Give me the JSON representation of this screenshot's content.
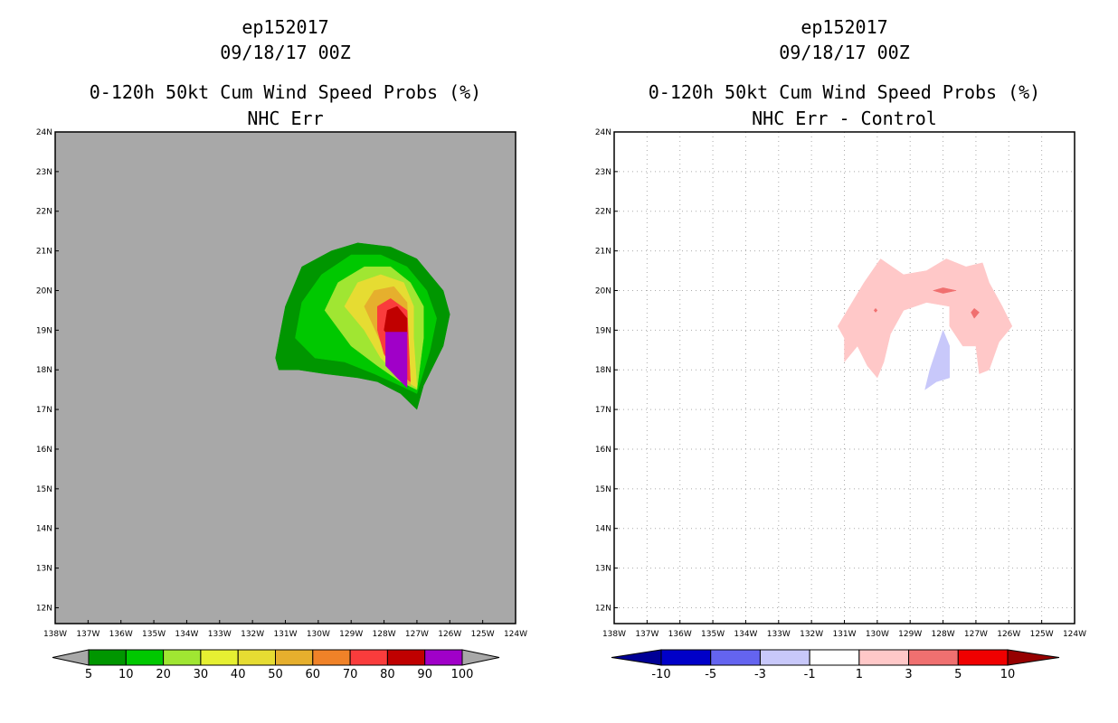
{
  "panels": [
    {
      "storm_id": "ep152017",
      "datetime": "09/18/17 00Z",
      "title": "0-120h 50kt Cum Wind Speed Probs (%)",
      "subtitle": "NHC Err",
      "background": "#a8a8a8"
    },
    {
      "storm_id": "ep152017",
      "datetime": "09/18/17 00Z",
      "title": "0-120h 50kt Cum Wind Speed Probs (%)",
      "subtitle": "NHC Err - Control",
      "background": "#ffffff"
    }
  ],
  "chart_data": [
    {
      "type": "contour-map",
      "title": "0-120h 50kt Cum Wind Speed Probs (%)",
      "subtitle": "NHC Err",
      "xlim": [
        -138,
        -124
      ],
      "ylim": [
        11.6,
        24
      ],
      "x_ticks": [
        "138W",
        "137W",
        "136W",
        "135W",
        "134W",
        "133W",
        "132W",
        "131W",
        "130W",
        "129W",
        "128W",
        "127W",
        "126W",
        "125W",
        "124W"
      ],
      "y_ticks": [
        "12N",
        "13N",
        "14N",
        "15N",
        "16N",
        "17N",
        "18N",
        "19N",
        "20N",
        "21N",
        "22N",
        "23N",
        "24N"
      ],
      "grid": false,
      "contours": [
        {
          "level": 5,
          "color": "#009600",
          "points": [
            [
              -131.3,
              18.3
            ],
            [
              -131.0,
              19.6
            ],
            [
              -130.5,
              20.6
            ],
            [
              -129.6,
              21.0
            ],
            [
              -128.8,
              21.2
            ],
            [
              -127.8,
              21.1
            ],
            [
              -127.0,
              20.8
            ],
            [
              -126.2,
              20.0
            ],
            [
              -126.0,
              19.4
            ],
            [
              -126.2,
              18.6
            ],
            [
              -126.8,
              17.6
            ],
            [
              -127.0,
              17.0
            ],
            [
              -127.5,
              17.4
            ],
            [
              -128.2,
              17.7
            ],
            [
              -128.8,
              17.8
            ],
            [
              -129.8,
              17.9
            ],
            [
              -130.6,
              18.0
            ],
            [
              -131.2,
              18.0
            ]
          ]
        },
        {
          "level": 10,
          "color": "#00c800",
          "points": [
            [
              -130.7,
              18.8
            ],
            [
              -130.5,
              19.7
            ],
            [
              -129.9,
              20.4
            ],
            [
              -129.0,
              20.9
            ],
            [
              -128.1,
              20.9
            ],
            [
              -127.3,
              20.6
            ],
            [
              -126.7,
              20.0
            ],
            [
              -126.4,
              19.3
            ],
            [
              -126.6,
              18.5
            ],
            [
              -127.0,
              17.4
            ],
            [
              -127.5,
              17.6
            ],
            [
              -128.3,
              17.9
            ],
            [
              -129.2,
              18.2
            ],
            [
              -130.1,
              18.3
            ]
          ]
        },
        {
          "level": 20,
          "color": "#a0e632",
          "points": [
            [
              -129.8,
              19.5
            ],
            [
              -129.4,
              20.2
            ],
            [
              -128.6,
              20.6
            ],
            [
              -127.8,
              20.6
            ],
            [
              -127.2,
              20.2
            ],
            [
              -126.8,
              19.6
            ],
            [
              -126.8,
              18.8
            ],
            [
              -127.0,
              17.5
            ],
            [
              -127.5,
              17.7
            ],
            [
              -128.2,
              18.1
            ],
            [
              -129.0,
              18.6
            ]
          ]
        },
        {
          "level": 30,
          "color": "#e6dc32",
          "points": [
            [
              -129.2,
              19.6
            ],
            [
              -128.8,
              20.2
            ],
            [
              -128.1,
              20.4
            ],
            [
              -127.4,
              20.2
            ],
            [
              -127.1,
              19.6
            ],
            [
              -127.1,
              18.8
            ],
            [
              -127.0,
              17.55
            ],
            [
              -127.5,
              17.8
            ],
            [
              -128.1,
              18.3
            ],
            [
              -128.6,
              19.0
            ]
          ]
        },
        {
          "level": 40,
          "color": "#e6dc32",
          "points": [
            [
              -128.9,
              19.6
            ],
            [
              -128.5,
              20.1
            ],
            [
              -127.9,
              20.3
            ],
            [
              -127.4,
              20.0
            ],
            [
              -127.2,
              19.5
            ],
            [
              -127.1,
              17.6
            ],
            [
              -127.6,
              17.9
            ],
            [
              -128.1,
              18.6
            ]
          ]
        },
        {
          "level": 50,
          "color": "#e6af2d",
          "points": [
            [
              -128.6,
              19.6
            ],
            [
              -128.3,
              20.0
            ],
            [
              -127.7,
              20.1
            ],
            [
              -127.3,
              19.7
            ],
            [
              -127.2,
              17.6
            ],
            [
              -127.7,
              17.9
            ],
            [
              -128.1,
              18.7
            ]
          ]
        },
        {
          "level": 70,
          "color": "#fa3c3c",
          "points": [
            [
              -128.2,
              19.0
            ],
            [
              -128.2,
              19.6
            ],
            [
              -127.8,
              19.8
            ],
            [
              -127.3,
              19.5
            ],
            [
              -127.2,
              17.7
            ],
            [
              -127.7,
              18.0
            ],
            [
              -128.0,
              18.4
            ]
          ]
        },
        {
          "level": 80,
          "color": "#c00000",
          "points": [
            [
              -128.0,
              19.0
            ],
            [
              -127.9,
              19.5
            ],
            [
              -127.6,
              19.6
            ],
            [
              -127.3,
              19.3
            ],
            [
              -127.3,
              18.9
            ],
            [
              -127.9,
              18.9
            ]
          ]
        },
        {
          "level": 90,
          "color": "#a000c8",
          "points": [
            [
              -127.95,
              18.95
            ],
            [
              -127.3,
              18.95
            ],
            [
              -127.3,
              17.55
            ],
            [
              -127.6,
              17.8
            ],
            [
              -127.95,
              18.1
            ]
          ]
        }
      ],
      "colorbar": {
        "labels": [
          "5",
          "10",
          "20",
          "30",
          "40",
          "50",
          "60",
          "70",
          "80",
          "90",
          "100"
        ],
        "colors": [
          "#009600",
          "#00c800",
          "#a0e632",
          "#e6f032",
          "#e6dc32",
          "#e6af2d",
          "#f08228",
          "#fa3c3c",
          "#c00000",
          "#a000c8"
        ]
      }
    },
    {
      "type": "contour-map",
      "title": "0-120h 50kt Cum Wind Speed Probs (%)",
      "subtitle": "NHC Err - Control",
      "xlim": [
        -138,
        -124
      ],
      "ylim": [
        11.6,
        24
      ],
      "x_ticks": [
        "138W",
        "137W",
        "136W",
        "135W",
        "134W",
        "133W",
        "132W",
        "131W",
        "130W",
        "129W",
        "128W",
        "127W",
        "126W",
        "125W",
        "124W"
      ],
      "y_ticks": [
        "12N",
        "13N",
        "14N",
        "15N",
        "16N",
        "17N",
        "18N",
        "19N",
        "20N",
        "21N",
        "22N",
        "23N",
        "24N"
      ],
      "grid": true,
      "contours": [
        {
          "level": 1,
          "color": "#ffc8c8",
          "points": [
            [
              -131.2,
              19.1
            ],
            [
              -130.4,
              20.2
            ],
            [
              -129.9,
              20.8
            ],
            [
              -129.2,
              20.4
            ],
            [
              -128.5,
              20.5
            ],
            [
              -127.9,
              20.8
            ],
            [
              -127.3,
              20.6
            ],
            [
              -126.8,
              20.7
            ],
            [
              -126.6,
              20.2
            ],
            [
              -126.2,
              19.6
            ],
            [
              -125.9,
              19.1
            ],
            [
              -126.3,
              18.7
            ],
            [
              -126.6,
              18.0
            ],
            [
              -126.9,
              17.9
            ],
            [
              -127.0,
              18.6
            ],
            [
              -127.4,
              18.6
            ],
            [
              -127.8,
              19.1
            ],
            [
              -127.8,
              19.6
            ],
            [
              -128.5,
              19.7
            ],
            [
              -129.2,
              19.5
            ],
            [
              -129.6,
              18.9
            ],
            [
              -129.8,
              18.2
            ],
            [
              -130.0,
              17.8
            ],
            [
              -130.3,
              18.1
            ],
            [
              -130.6,
              18.6
            ],
            [
              -131.0,
              18.2
            ],
            [
              -131.0,
              18.8
            ]
          ]
        },
        {
          "level": 3,
          "color": "#f07070",
          "points": [
            [
              -128.3,
              20.0
            ],
            [
              -128.0,
              20.07
            ],
            [
              -127.6,
              20.0
            ],
            [
              -128.0,
              19.93
            ]
          ]
        },
        {
          "level": 3,
          "color": "#f07070",
          "points": [
            [
              -130.1,
              19.5
            ],
            [
              -130.05,
              19.55
            ],
            [
              -130.0,
              19.5
            ],
            [
              -130.05,
              19.45
            ]
          ]
        },
        {
          "level": 3,
          "color": "#f07070",
          "points": [
            [
              -127.05,
              19.55
            ],
            [
              -126.9,
              19.45
            ],
            [
              -127.05,
              19.3
            ],
            [
              -127.15,
              19.45
            ]
          ]
        },
        {
          "level": -1,
          "color": "#c8c8fa",
          "points": [
            [
              -128.2,
              18.5
            ],
            [
              -128.0,
              19.0
            ],
            [
              -127.8,
              18.6
            ],
            [
              -127.8,
              17.8
            ],
            [
              -128.2,
              17.7
            ],
            [
              -128.55,
              17.5
            ],
            [
              -128.4,
              18.0
            ]
          ]
        }
      ],
      "colorbar": {
        "labels": [
          "-10",
          "-5",
          "-3",
          "-1",
          "1",
          "3",
          "5",
          "10"
        ],
        "colors": [
          "#0000c8",
          "#6464f0",
          "#c8c8fa",
          "#ffffff",
          "#ffc8c8",
          "#f07070",
          "#f00000"
        ],
        "extend_colors": [
          "#000096",
          "#960000"
        ]
      }
    }
  ]
}
